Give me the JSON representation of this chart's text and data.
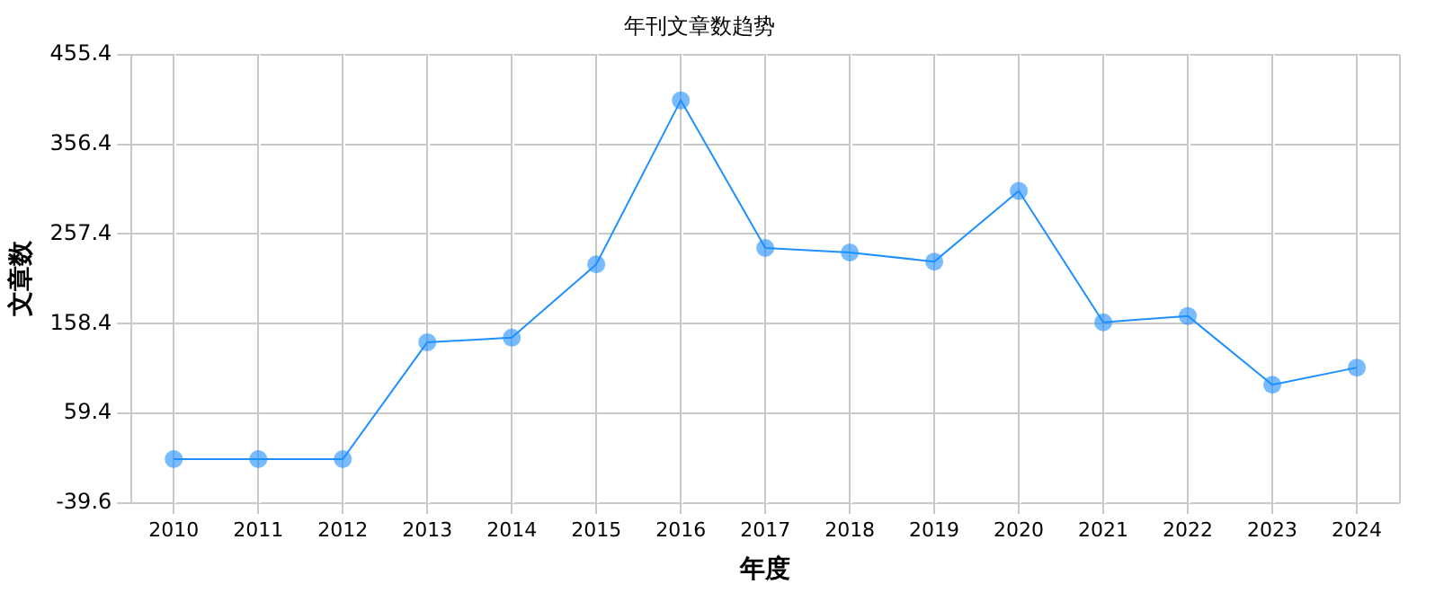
{
  "chart_data": {
    "type": "line",
    "title": "年刊文章数趋势",
    "xlabel": "年度",
    "ylabel": "文章数",
    "categories": [
      "2010",
      "2011",
      "2012",
      "2013",
      "2014",
      "2015",
      "2016",
      "2017",
      "2018",
      "2019",
      "2020",
      "2021",
      "2022",
      "2023",
      "2024"
    ],
    "series": [
      {
        "color": "#1e90ff",
        "values": [
          9,
          9,
          9,
          138,
          143,
          224,
          405,
          242,
          237,
          227,
          305,
          160,
          167,
          91,
          110
        ]
      }
    ],
    "ylim": [
      -39.6,
      455.4
    ],
    "yticks": [
      -39.6,
      59.4,
      158.4,
      257.4,
      356.4,
      455.4
    ],
    "grid": true,
    "legend": false,
    "marker": "circle",
    "line_style": "solid"
  }
}
